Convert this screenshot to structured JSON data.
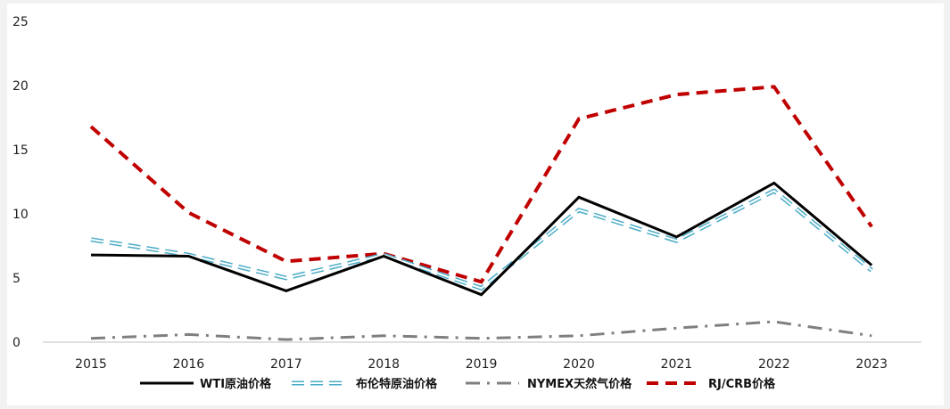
{
  "chart_data": {
    "type": "line",
    "categories": [
      "2015",
      "2016",
      "2017",
      "2018",
      "2019",
      "2020",
      "2021",
      "2022",
      "2023"
    ],
    "ylim": [
      0,
      25
    ],
    "yticks": [
      "0",
      "5",
      "10",
      "15",
      "20",
      "25"
    ],
    "grid": false,
    "legend_position": "bottom",
    "series": [
      {
        "name": "WTI原油价格",
        "color": "#000000",
        "style": "solid",
        "values": [
          6.8,
          6.7,
          4.0,
          6.7,
          3.7,
          11.3,
          8.2,
          12.4,
          6.0
        ]
      },
      {
        "name": "布伦特原油价格",
        "color": "#4bacc6",
        "style": "double-dash",
        "values": [
          8.0,
          6.8,
          5.0,
          6.8,
          4.2,
          10.3,
          7.9,
          11.8,
          5.6
        ]
      },
      {
        "name": "NYMEX天然气价格",
        "color": "#7f7f7f",
        "style": "dash-dot",
        "values": [
          0.3,
          0.6,
          0.2,
          0.5,
          0.3,
          0.5,
          1.1,
          1.6,
          0.5
        ]
      },
      {
        "name": "RJ/CRB价格",
        "color": "#c00000",
        "style": "dash",
        "values": [
          16.8,
          10.1,
          6.3,
          6.9,
          4.7,
          17.4,
          19.3,
          19.9,
          9.0
        ]
      }
    ]
  }
}
